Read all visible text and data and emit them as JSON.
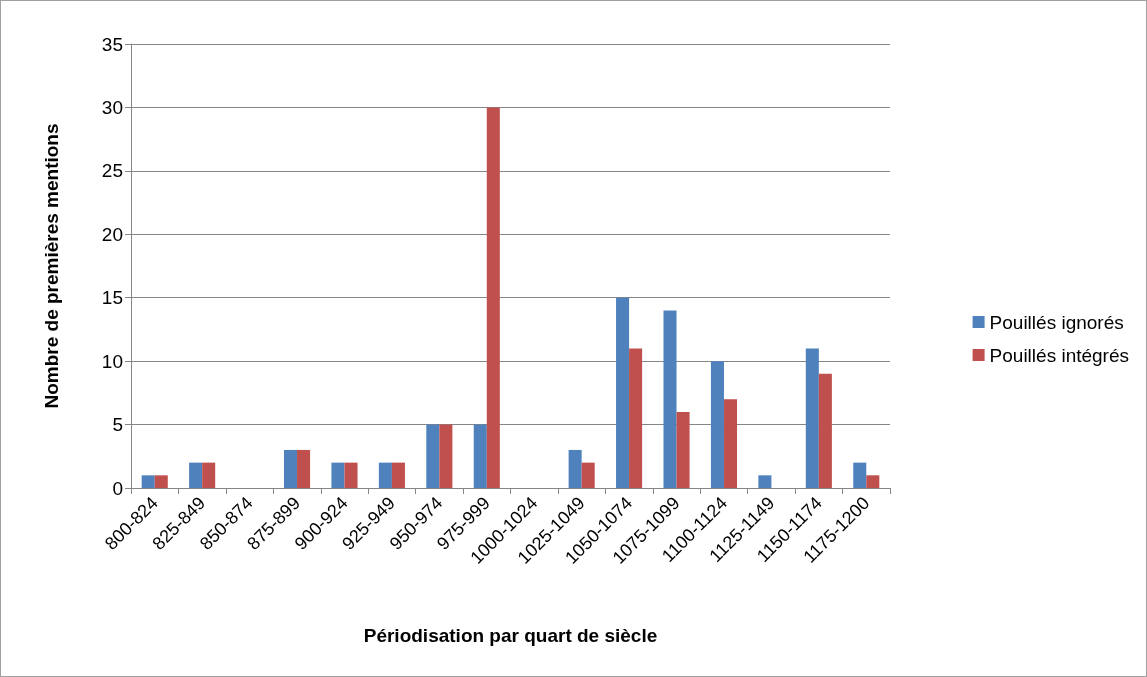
{
  "chart_data": {
    "type": "bar",
    "xlabel": "Périodisation par quart de siècle",
    "ylabel": "Nombre de premières mentions",
    "categories": [
      "800-824",
      "825-849",
      "850-874",
      "875-899",
      "900-924",
      "925-949",
      "950-974",
      "975-999",
      "1000-1024",
      "1025-1049",
      "1050-1074",
      "1075-1099",
      "1100-1124",
      "1125-1149",
      "1150-1174",
      "1175-1200"
    ],
    "series": [
      {
        "name": "Pouillés ignorés",
        "color": "#4f81bd",
        "values": [
          1,
          2,
          0,
          3,
          2,
          2,
          5,
          5,
          0,
          3,
          15,
          14,
          10,
          1,
          11,
          2
        ]
      },
      {
        "name": "Pouillés intégrés",
        "color": "#c0504d",
        "values": [
          1,
          2,
          0,
          3,
          2,
          2,
          5,
          30,
          0,
          2,
          11,
          6,
          7,
          0,
          9,
          1
        ]
      }
    ],
    "ylim": [
      0,
      35
    ],
    "yticks": [
      0,
      5,
      10,
      15,
      20,
      25,
      30,
      35
    ],
    "grid": "y",
    "legend": "right"
  }
}
